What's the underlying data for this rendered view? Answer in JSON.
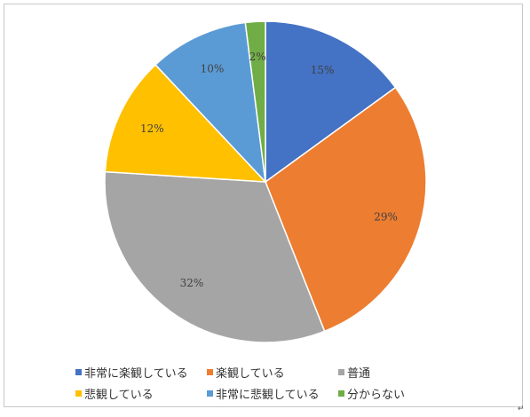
{
  "chart_data": {
    "type": "pie",
    "categories": [
      "非常に楽観している",
      "楽観している",
      "普通",
      "悲観している",
      "非常に悲観している",
      "分からない"
    ],
    "values": [
      15,
      29,
      32,
      12,
      10,
      2
    ],
    "data_labels": [
      "15%",
      "29%",
      "32%",
      "12%",
      "10%",
      "2%"
    ],
    "colors": [
      "#4472c4",
      "#ed7d31",
      "#a5a5a5",
      "#ffc000",
      "#5b9bd5",
      "#70ad47"
    ],
    "start_angle": "12 o'clock, clockwise",
    "legend_position": "bottom",
    "title": ""
  },
  "legend": {
    "items": [
      {
        "label": "非常に楽観している",
        "color": "#4472c4"
      },
      {
        "label": "楽観している",
        "color": "#ed7d31"
      },
      {
        "label": "普通",
        "color": "#a5a5a5"
      },
      {
        "label": "悲観している",
        "color": "#ffc000"
      },
      {
        "label": "非常に悲観している",
        "color": "#5b9bd5"
      },
      {
        "label": "分からない",
        "color": "#70ad47"
      }
    ]
  },
  "corner_mark": "↵"
}
